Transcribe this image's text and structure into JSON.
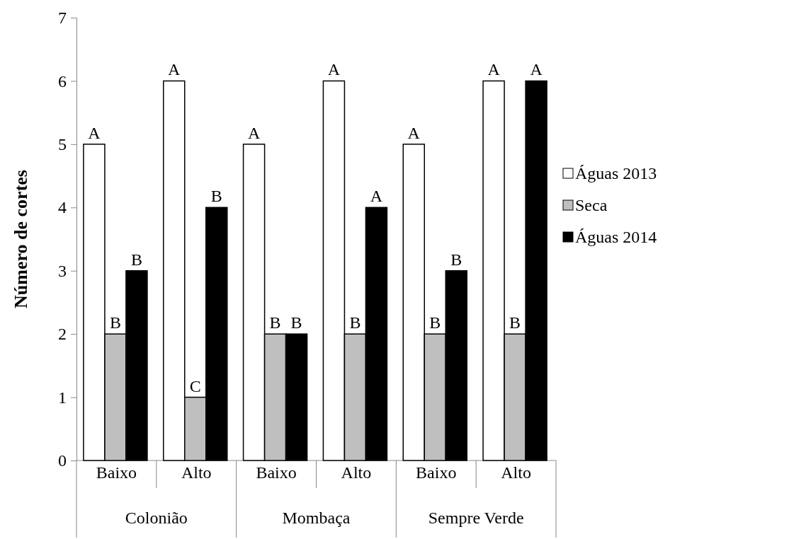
{
  "chart_data": {
    "type": "bar",
    "ylabel": "Número de cortes",
    "categories": [
      "Baixo",
      "Alto",
      "Baixo",
      "Alto",
      "Baixo",
      "Alto"
    ],
    "annotations": [
      "Colonião",
      "Mombaça",
      "Sempre Verde"
    ],
    "series": [
      {
        "name": "Águas 2013",
        "color": "#ffffff",
        "values": [
          5,
          6,
          5,
          6,
          5,
          6
        ],
        "value_labels": [
          "A",
          "A",
          "A",
          "A",
          "A",
          "A"
        ]
      },
      {
        "name": "Seca",
        "color": "#bfbfbf",
        "values": [
          2,
          1,
          2,
          2,
          2,
          2
        ],
        "value_labels": [
          "B",
          "C",
          "B",
          "B",
          "B",
          "B"
        ]
      },
      {
        "name": "Águas 2014",
        "color": "#000000",
        "values": [
          3,
          4,
          2,
          4,
          3,
          6
        ],
        "value_labels": [
          "B",
          "B",
          "B",
          "A",
          "B",
          "A"
        ]
      }
    ],
    "ylim": [
      0,
      7
    ],
    "yticks": [
      0,
      1,
      2,
      3,
      4,
      5,
      6,
      7
    ],
    "grid": false,
    "legend": "right"
  }
}
